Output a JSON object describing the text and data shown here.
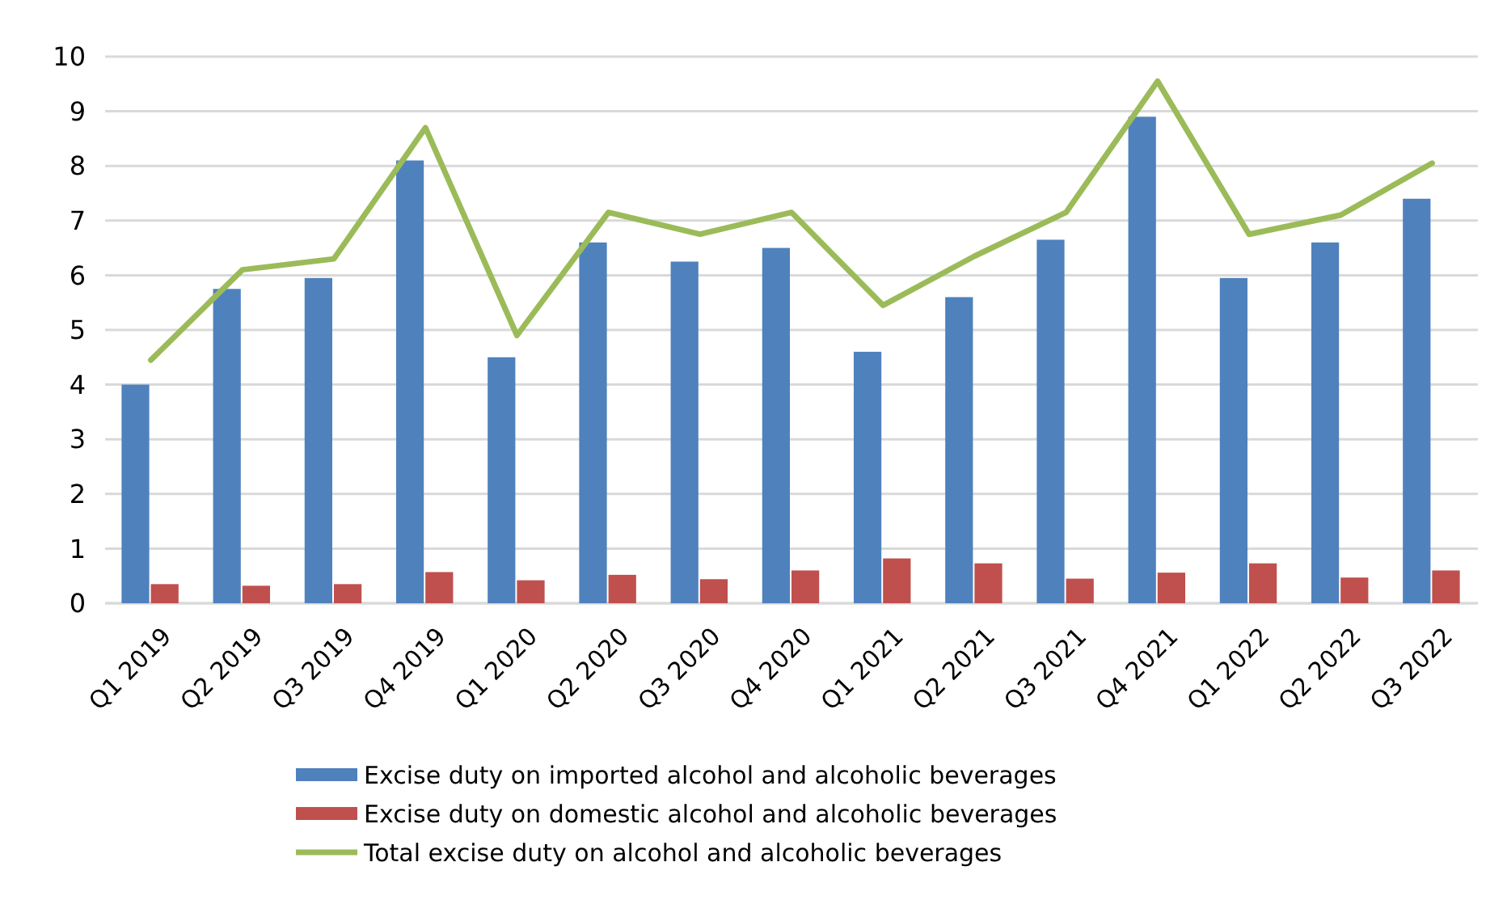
{
  "chart_data": {
    "type": "bar",
    "categories": [
      "Q1 2019",
      "Q2 2019",
      "Q3 2019",
      "Q4 2019",
      "Q1 2020",
      "Q2 2020",
      "Q3 2020",
      "Q4 2020",
      "Q1 2021",
      "Q2 2021",
      "Q3 2021",
      "Q4 2021",
      "Q1 2022",
      "Q2 2022",
      "Q3 2022"
    ],
    "series": [
      {
        "name": "Excise duty on imported alcohol and alcoholic beverages",
        "color": "#4f81bd",
        "values": [
          4.0,
          5.75,
          5.95,
          8.1,
          4.5,
          6.6,
          6.25,
          6.5,
          4.6,
          5.6,
          6.65,
          8.9,
          5.95,
          6.6,
          7.4
        ]
      },
      {
        "name": "Excise duty on domestic alcohol and alcoholic beverages",
        "color": "#c0504d",
        "values": [
          0.35,
          0.32,
          0.35,
          0.57,
          0.42,
          0.52,
          0.44,
          0.6,
          0.82,
          0.73,
          0.45,
          0.56,
          0.73,
          0.47,
          0.6
        ]
      },
      {
        "name": "Total excise duty on alcohol and alcoholic beverages",
        "type": "line",
        "color": "#9bbb59",
        "values": [
          4.45,
          6.1,
          6.3,
          8.7,
          4.9,
          7.15,
          6.75,
          7.15,
          5.45,
          6.35,
          7.15,
          9.55,
          6.75,
          7.1,
          8.05
        ]
      }
    ],
    "ylim": [
      0,
      10
    ],
    "yticks": [
      0,
      1,
      2,
      3,
      4,
      5,
      6,
      7,
      8,
      9,
      10
    ],
    "grid": "y",
    "legend": "bottom",
    "marker": "none",
    "line_style": "solid"
  }
}
